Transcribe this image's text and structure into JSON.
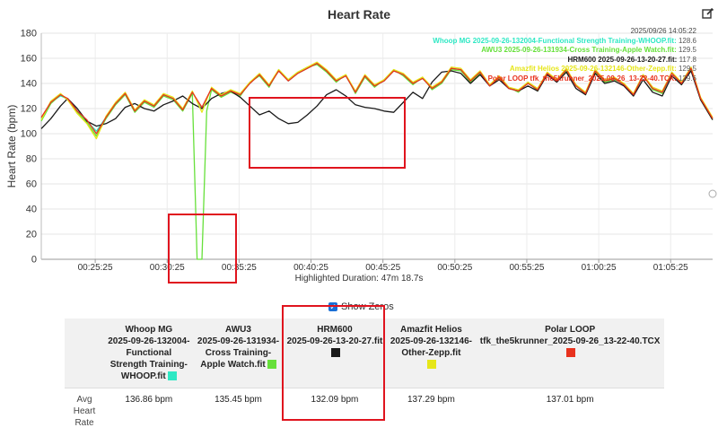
{
  "chart_data": {
    "type": "line",
    "title": "Heart Rate",
    "ylabel": "Heart Rate (bpm)",
    "xlabel": "",
    "ylim": [
      0,
      180
    ],
    "yticks": [
      0,
      20,
      40,
      60,
      80,
      100,
      120,
      140,
      160,
      180
    ],
    "xlim": [
      "00:21:40",
      "01:08:20"
    ],
    "xticks": [
      "00:25:25",
      "00:30:25",
      "00:35:25",
      "00:40:25",
      "00:45:25",
      "00:50:25",
      "00:55:25",
      "01:00:25",
      "01:05:25"
    ],
    "grid": true,
    "legend_position": "top-right",
    "legend_date": "2025/09/26 14:05:22",
    "series": [
      {
        "name": "Whoop MG 2025-09-26-132004-Functional Strength Training-WHOOP.fit",
        "color": "#2ee8c4",
        "legend_value": "128.6",
        "x": [
          "00:21:40",
          "00:22:20",
          "00:23:00",
          "00:23:30",
          "00:24:10",
          "00:24:50",
          "00:25:30",
          "00:26:10",
          "00:26:50",
          "00:27:30",
          "00:28:10",
          "00:28:50",
          "00:29:30",
          "00:30:10",
          "00:30:50",
          "00:31:30",
          "00:32:10",
          "00:32:50",
          "00:33:30",
          "00:34:10",
          "00:34:50",
          "00:35:30",
          "00:36:10",
          "00:36:50",
          "00:37:30",
          "00:38:10",
          "00:38:50",
          "00:39:30",
          "00:40:10",
          "00:40:50",
          "00:41:30",
          "00:42:10",
          "00:42:50",
          "00:43:30",
          "00:44:10",
          "00:44:50",
          "00:45:30",
          "00:46:10",
          "00:46:50",
          "00:47:30",
          "00:48:10",
          "00:48:50",
          "00:49:30",
          "00:50:10",
          "00:50:50",
          "00:51:30",
          "00:52:10",
          "00:52:50",
          "00:53:30",
          "00:54:10",
          "00:54:50",
          "00:55:30",
          "00:56:10",
          "00:56:50",
          "00:57:30",
          "00:58:10",
          "00:58:50",
          "00:59:30",
          "01:00:10",
          "01:00:50",
          "01:01:30",
          "01:02:10",
          "01:02:50",
          "01:03:30",
          "01:04:10",
          "01:04:50",
          "01:05:30",
          "01:06:10",
          "01:06:50",
          "01:07:30",
          "01:08:20"
        ],
        "values": [
          112,
          125,
          130,
          128,
          118,
          110,
          102,
          113,
          124,
          132,
          118,
          126,
          122,
          131,
          128,
          119,
          133,
          120,
          136,
          130,
          134,
          131,
          140,
          147,
          138,
          150,
          142,
          148,
          152,
          156,
          150,
          142,
          146,
          133,
          146,
          138,
          142,
          150,
          147,
          140,
          144,
          136,
          141,
          152,
          151,
          142,
          149,
          138,
          145,
          136,
          134,
          140,
          135,
          148,
          142,
          151,
          138,
          132,
          150,
          142,
          144,
          139,
          131,
          146,
          136,
          133,
          148,
          140,
          152,
          128,
          112
        ]
      },
      {
        "name": "AWU3 2025-09-26-131934-Cross Training-Apple Watch.fit",
        "color": "#66e03a",
        "legend_value": "129.5",
        "x": [
          "00:21:40",
          "00:22:20",
          "00:23:00",
          "00:23:30",
          "00:24:10",
          "00:24:50",
          "00:25:30",
          "00:26:10",
          "00:26:50",
          "00:27:30",
          "00:28:10",
          "00:28:50",
          "00:29:30",
          "00:30:10",
          "00:30:50",
          "00:31:30",
          "00:32:10",
          "00:32:30",
          "00:32:50",
          "00:33:10",
          "00:33:30",
          "00:34:10",
          "00:34:50",
          "00:35:30",
          "00:36:10",
          "00:36:50",
          "00:37:30",
          "00:38:10",
          "00:38:50",
          "00:39:30",
          "00:40:10",
          "00:40:50",
          "00:41:30",
          "00:42:10",
          "00:42:50",
          "00:43:30",
          "00:44:10",
          "00:44:50",
          "00:45:30",
          "00:46:10",
          "00:46:50",
          "00:47:30",
          "00:48:10",
          "00:48:50",
          "00:49:30",
          "00:50:10",
          "00:50:50",
          "00:51:30",
          "00:52:10",
          "00:52:50",
          "00:53:30",
          "00:54:10",
          "00:54:50",
          "00:55:30",
          "00:56:10",
          "00:56:50",
          "00:57:30",
          "00:58:10",
          "00:58:50",
          "00:59:30",
          "01:00:10",
          "01:00:50",
          "01:01:30",
          "01:02:10",
          "01:02:50",
          "01:03:30",
          "01:04:10",
          "01:04:50",
          "01:05:30",
          "01:06:10",
          "01:06:50",
          "01:07:30",
          "01:08:20"
        ],
        "values": [
          110,
          124,
          131,
          127,
          117,
          109,
          98,
          112,
          123,
          131,
          117,
          125,
          121,
          130,
          127,
          118,
          132,
          0,
          0,
          118,
          135,
          129,
          133,
          130,
          141,
          146,
          137,
          151,
          143,
          149,
          153,
          155,
          149,
          141,
          147,
          132,
          145,
          137,
          143,
          151,
          146,
          139,
          145,
          135,
          140,
          151,
          150,
          141,
          148,
          139,
          144,
          137,
          133,
          141,
          134,
          147,
          143,
          150,
          139,
          131,
          149,
          141,
          143,
          140,
          130,
          147,
          135,
          132,
          149,
          139,
          151,
          127,
          111
        ]
      },
      {
        "name": "HRM600 2025-09-26-13-20-27.fit",
        "color": "#1a1a1a",
        "legend_value": "117.8",
        "x": [
          "00:21:40",
          "00:22:20",
          "00:23:00",
          "00:23:30",
          "00:24:10",
          "00:24:50",
          "00:25:30",
          "00:26:10",
          "00:26:50",
          "00:27:30",
          "00:28:10",
          "00:28:50",
          "00:29:30",
          "00:30:10",
          "00:30:50",
          "00:31:30",
          "00:32:10",
          "00:32:50",
          "00:33:30",
          "00:34:10",
          "00:34:50",
          "00:35:30",
          "00:36:10",
          "00:36:50",
          "00:37:30",
          "00:38:10",
          "00:38:50",
          "00:39:30",
          "00:40:10",
          "00:40:50",
          "00:41:30",
          "00:42:10",
          "00:42:50",
          "00:43:30",
          "00:44:10",
          "00:44:50",
          "00:45:30",
          "00:46:10",
          "00:46:50",
          "00:47:30",
          "00:48:10",
          "00:48:50",
          "00:49:30",
          "00:50:10",
          "00:50:50",
          "00:51:30",
          "00:52:10",
          "00:52:50",
          "00:53:30",
          "00:54:10",
          "00:54:50",
          "00:55:30",
          "00:56:10",
          "00:56:50",
          "00:57:30",
          "00:58:10",
          "00:58:50",
          "00:59:30",
          "01:00:10",
          "01:00:50",
          "01:01:30",
          "01:02:10",
          "01:02:50",
          "01:03:30",
          "01:04:10",
          "01:04:50",
          "01:05:30",
          "01:06:10",
          "01:06:50",
          "01:07:30",
          "01:08:20"
        ],
        "values": [
          104,
          112,
          122,
          128,
          120,
          110,
          106,
          108,
          112,
          121,
          124,
          120,
          118,
          123,
          126,
          130,
          124,
          120,
          128,
          132,
          134,
          129,
          122,
          115,
          118,
          112,
          108,
          109,
          115,
          122,
          131,
          135,
          130,
          123,
          121,
          120,
          118,
          117,
          125,
          133,
          128,
          141,
          149,
          150,
          148,
          140,
          147,
          138,
          143,
          136,
          134,
          138,
          134,
          147,
          141,
          149,
          136,
          131,
          148,
          140,
          142,
          138,
          130,
          143,
          133,
          130,
          146,
          139,
          150,
          127,
          111
        ]
      },
      {
        "name": "Amazfit Helios 2025-09-26-132146-Other-Zepp.fit",
        "color": "#e6e619",
        "legend_value": "129.5",
        "x": [
          "00:21:40",
          "00:22:20",
          "00:23:00",
          "00:23:30",
          "00:24:10",
          "00:24:50",
          "00:25:30",
          "00:26:10",
          "00:26:50",
          "00:27:30",
          "00:28:10",
          "00:28:50",
          "00:29:30",
          "00:30:10",
          "00:30:50",
          "00:31:30",
          "00:32:10",
          "00:32:50",
          "00:33:30",
          "00:34:10",
          "00:34:50",
          "00:35:30",
          "00:36:10",
          "00:36:50",
          "00:37:30",
          "00:38:10",
          "00:38:50",
          "00:39:30",
          "00:40:10",
          "00:40:50",
          "00:41:30",
          "00:42:10",
          "00:42:50",
          "00:43:30",
          "00:44:10",
          "00:44:50",
          "00:45:30",
          "00:46:10",
          "00:46:50",
          "00:47:30",
          "00:48:10",
          "00:48:50",
          "00:49:30",
          "00:50:10",
          "00:50:50",
          "00:51:30",
          "00:52:10",
          "00:52:50",
          "00:53:30",
          "00:54:10",
          "00:54:50",
          "00:55:30",
          "00:56:10",
          "00:56:50",
          "00:57:30",
          "00:58:10",
          "00:58:50",
          "00:59:30",
          "01:00:10",
          "01:00:50",
          "01:01:30",
          "01:02:10",
          "01:02:50",
          "01:03:30",
          "01:04:10",
          "01:04:50",
          "01:05:30",
          "01:06:10",
          "01:06:50",
          "01:07:30",
          "01:08:20"
        ],
        "values": [
          111,
          126,
          132,
          127,
          116,
          108,
          96,
          114,
          125,
          133,
          119,
          127,
          123,
          132,
          129,
          120,
          134,
          117,
          137,
          131,
          135,
          132,
          141,
          148,
          139,
          151,
          143,
          149,
          153,
          157,
          151,
          143,
          147,
          134,
          147,
          139,
          143,
          151,
          148,
          141,
          145,
          137,
          142,
          153,
          152,
          143,
          150,
          139,
          146,
          137,
          135,
          141,
          136,
          149,
          143,
          152,
          139,
          133,
          151,
          143,
          145,
          140,
          132,
          147,
          137,
          134,
          149,
          141,
          153,
          129,
          113
        ]
      },
      {
        "name": "Polar LOOP tfk_the5krunner_2025-09-26_13-22-40.TCX",
        "color": "#e8321e",
        "legend_value": "129.6",
        "x": [
          "00:21:40",
          "00:22:20",
          "00:23:00",
          "00:23:30",
          "00:24:10",
          "00:24:50",
          "00:25:30",
          "00:26:10",
          "00:26:50",
          "00:27:30",
          "00:28:10",
          "00:28:50",
          "00:29:30",
          "00:30:10",
          "00:30:50",
          "00:31:30",
          "00:32:10",
          "00:32:50",
          "00:33:30",
          "00:34:10",
          "00:34:50",
          "00:35:30",
          "00:36:10",
          "00:36:50",
          "00:37:30",
          "00:38:10",
          "00:38:50",
          "00:39:30",
          "00:40:10",
          "00:40:50",
          "00:41:30",
          "00:42:10",
          "00:42:50",
          "00:43:30",
          "00:44:10",
          "00:44:50",
          "00:45:30",
          "00:46:10",
          "00:46:50",
          "00:47:30",
          "00:48:10",
          "00:48:50",
          "00:49:30",
          "00:50:10",
          "00:50:50",
          "00:51:30",
          "00:52:10",
          "00:52:50",
          "00:53:30",
          "00:54:10",
          "00:54:50",
          "00:55:30",
          "00:56:10",
          "00:56:50",
          "00:57:30",
          "00:58:10",
          "00:58:50",
          "00:59:30",
          "01:00:10",
          "01:00:50",
          "01:01:30",
          "01:02:10",
          "01:02:50",
          "01:03:30",
          "01:04:10",
          "01:04:50",
          "01:05:30",
          "01:06:10",
          "01:06:50",
          "01:07:30",
          "01:08:20"
        ],
        "values": [
          113,
          125,
          131,
          128,
          118,
          111,
          100,
          113,
          124,
          132,
          118,
          126,
          122,
          131,
          128,
          119,
          133,
          121,
          136,
          130,
          134,
          131,
          140,
          147,
          138,
          150,
          142,
          148,
          152,
          156,
          150,
          142,
          146,
          133,
          146,
          138,
          142,
          150,
          147,
          140,
          144,
          136,
          141,
          152,
          151,
          142,
          149,
          138,
          145,
          136,
          134,
          140,
          135,
          148,
          142,
          151,
          138,
          132,
          150,
          142,
          144,
          139,
          131,
          146,
          136,
          133,
          148,
          140,
          152,
          128,
          112
        ]
      }
    ]
  },
  "highlight_label": "Highlighted Duration: 47m 18.7s",
  "show_zeros": {
    "label": "Show Zeros",
    "checked_glyph": "✓"
  },
  "table": {
    "columns": [
      {
        "lines": [
          "Whoop MG",
          "2025-09-26-132004-",
          "Functional",
          "Strength Training-",
          "WHOOP.fit"
        ],
        "color": "#2ee8c4"
      },
      {
        "lines": [
          "AWU3",
          "2025-09-26-131934-",
          "Cross Training-",
          "Apple Watch.fit"
        ],
        "color": "#66e03a"
      },
      {
        "lines": [
          "HRM600",
          "2025-09-26-13-20-27.fit"
        ],
        "color": "#1a1a1a"
      },
      {
        "lines": [
          "Amazfit Helios",
          "2025-09-26-132146-",
          "Other-Zepp.fit"
        ],
        "color": "#e6e619"
      },
      {
        "lines": [
          "Polar LOOP",
          "tfk_the5krunner_2025-09-26_13-22-40.TCX"
        ],
        "color": "#e8321e"
      }
    ],
    "row_label": "Avg Heart Rate",
    "row_values": [
      "136.86 bpm",
      "135.45 bpm",
      "132.09 bpm",
      "137.29 bpm",
      "137.01 bpm"
    ]
  }
}
